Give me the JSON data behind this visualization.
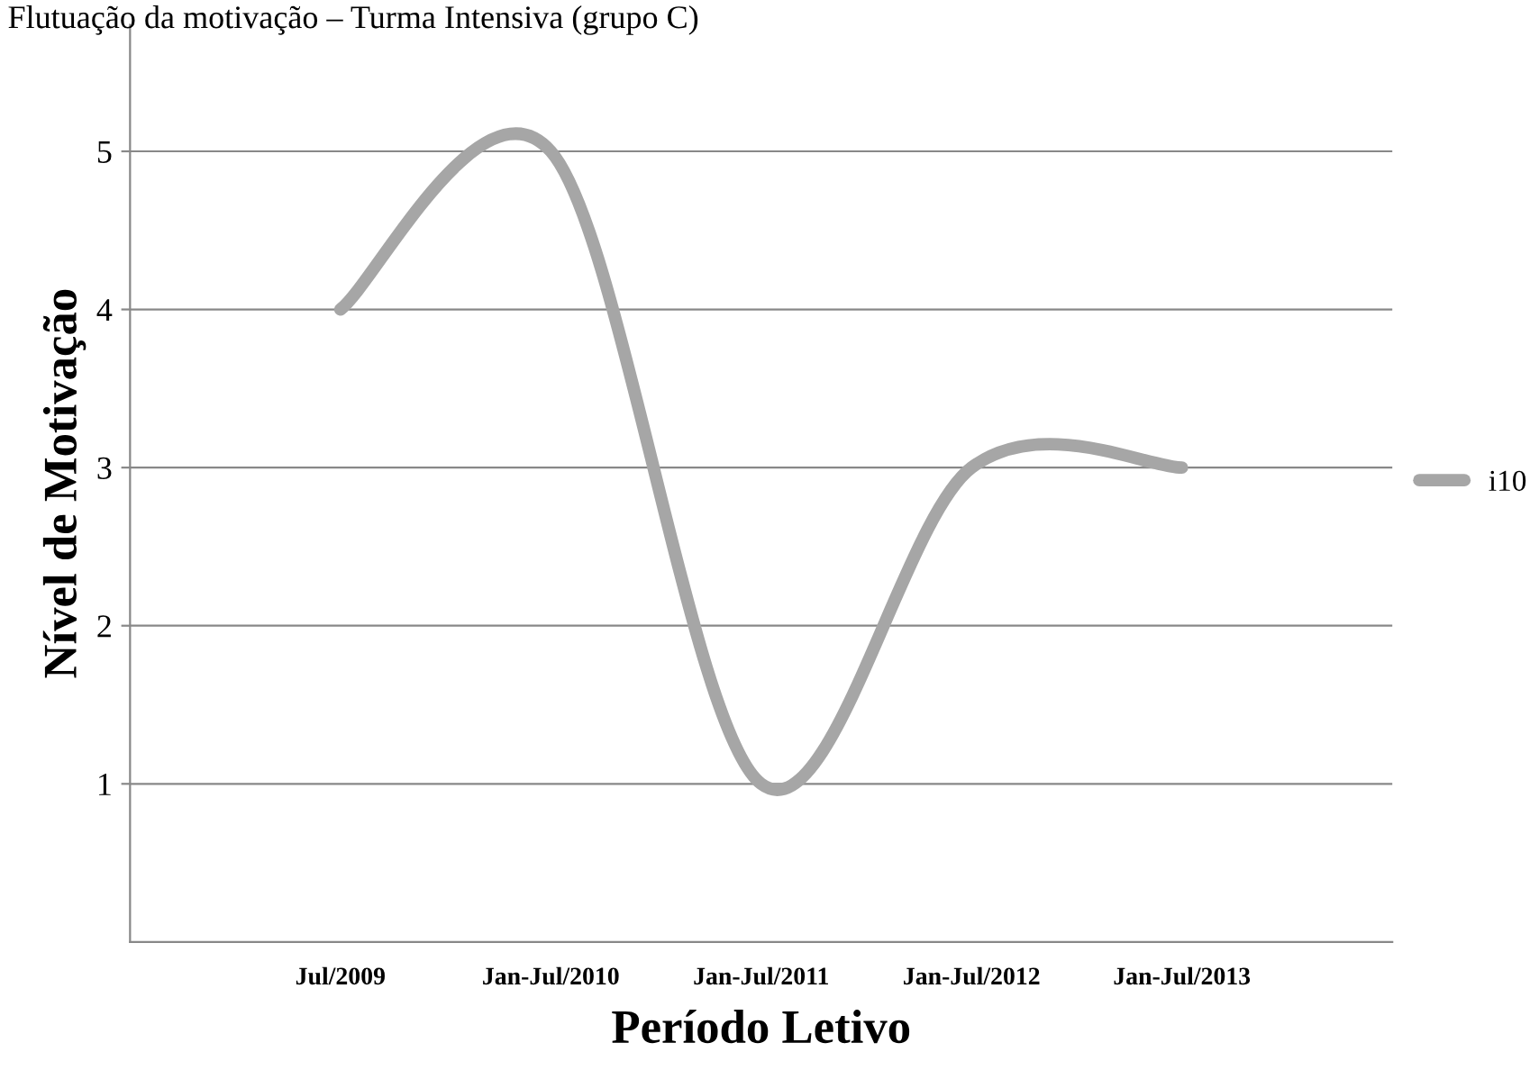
{
  "chart_data": {
    "type": "line",
    "title": "Flutuação da motivação – Turma Intensiva (grupo C)",
    "xlabel": "Período Letivo",
    "ylabel": "Nível de Motivação",
    "categories": [
      null,
      "Jul/2009",
      "Jan-Jul/2010",
      "Jan-Jul/2011",
      "Jan-Jul/2012",
      "Jan-Jul/2013",
      null
    ],
    "series": [
      {
        "name": "i10",
        "color": "#a6a6a6",
        "values": [
          null,
          4,
          5,
          1,
          3,
          3,
          null
        ]
      }
    ],
    "ylim": [
      0,
      5.8
    ],
    "yticks": [
      1,
      2,
      3,
      4,
      5
    ],
    "grid": "y",
    "legend": "right",
    "marker": "none",
    "line_style": "solid"
  }
}
